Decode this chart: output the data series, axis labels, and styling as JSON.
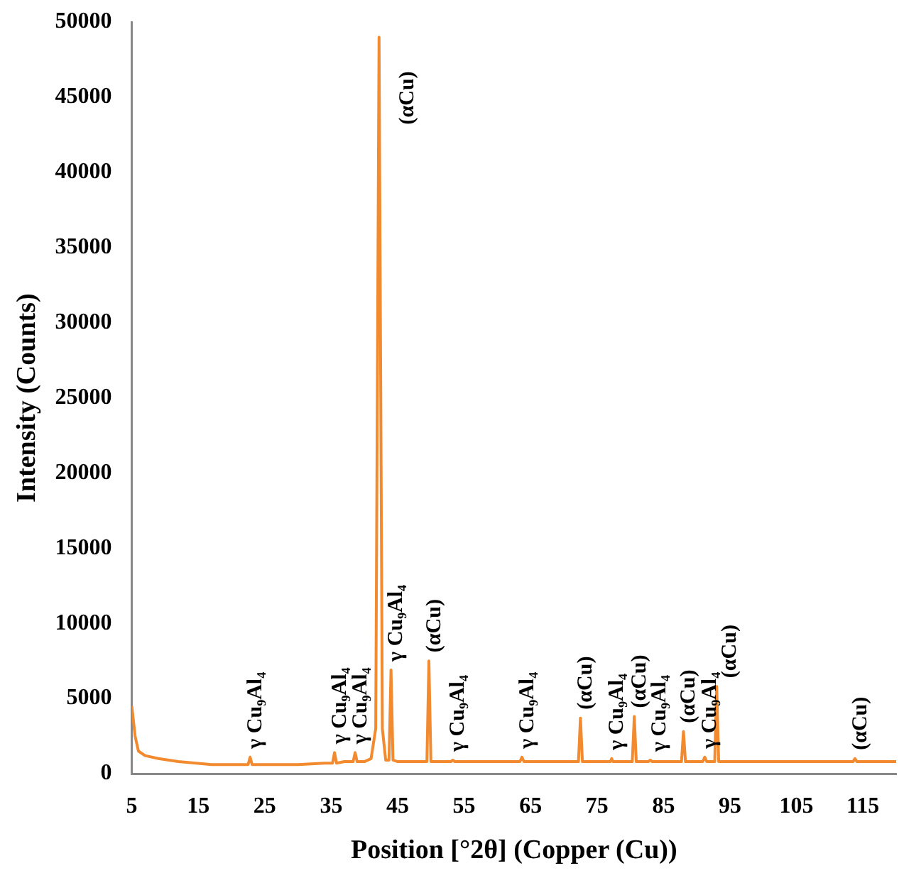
{
  "chart_data": {
    "type": "line",
    "xlabel": "Position [°2θ] (Copper (Cu))",
    "ylabel": "Intensity (Counts)",
    "xlim": [
      5,
      120
    ],
    "xticks": [
      5,
      15,
      25,
      35,
      45,
      55,
      65,
      75,
      85,
      95,
      105,
      115
    ],
    "ylim": [
      0,
      50000
    ],
    "yticks": [
      0,
      5000,
      10000,
      15000,
      20000,
      25000,
      30000,
      35000,
      40000,
      45000,
      50000
    ],
    "grid": false,
    "legend": false,
    "marker": "none",
    "line_style": "solid",
    "series": [
      {
        "color": "#f28a30",
        "x": [
          5,
          5.5,
          6,
          7,
          9,
          12,
          17,
          22,
          22.5,
          22.8,
          23.1,
          26,
          30,
          34,
          35.2,
          35.5,
          35.8,
          37,
          38.3,
          38.6,
          38.9,
          40,
          41,
          41.7,
          42.2,
          42.7,
          43.2,
          43.7,
          44.0,
          44.3,
          45,
          47,
          49.4,
          49.7,
          50,
          51,
          53,
          53.3,
          53.6,
          58,
          63.4,
          63.7,
          64,
          68,
          72.2,
          72.5,
          72.8,
          75,
          77,
          77.2,
          77.4,
          80.3,
          80.6,
          80.9,
          82.7,
          83.0,
          83.3,
          87.7,
          88.0,
          88.3,
          90.9,
          91.2,
          91.5,
          92.7,
          93.0,
          93.3,
          100,
          110,
          113.5,
          113.8,
          114.1,
          120
        ],
        "values": [
          4500,
          2500,
          1500,
          1200,
          1000,
          800,
          600,
          600,
          600,
          1100,
          600,
          600,
          600,
          700,
          700,
          1400,
          700,
          800,
          800,
          1400,
          800,
          800,
          1000,
          3000,
          49000,
          3000,
          900,
          900,
          6900,
          900,
          800,
          800,
          800,
          7500,
          800,
          800,
          800,
          900,
          800,
          800,
          800,
          1100,
          800,
          800,
          800,
          3700,
          800,
          800,
          800,
          1000,
          800,
          800,
          3800,
          800,
          800,
          900,
          800,
          800,
          2800,
          800,
          800,
          1100,
          800,
          800,
          5800,
          800,
          800,
          800,
          800,
          1000,
          800,
          800
        ]
      }
    ],
    "annotations": [
      {
        "text": "γ Cu₉Al₄",
        "x": 22.8,
        "y": 1100
      },
      {
        "text": "γ Cu₉Al₄",
        "x": 35.5,
        "y": 1400
      },
      {
        "text": "γ Cu₉Al₄",
        "x": 38.6,
        "y": 1400
      },
      {
        "text": "(αCu)",
        "x": 42.2,
        "y": 49000
      },
      {
        "text": "γ Cu₉Al₄",
        "x": 44.0,
        "y": 6900
      },
      {
        "text": "(αCu)",
        "x": 49.7,
        "y": 7500
      },
      {
        "text": "γ Cu₉Al₄",
        "x": 53.3,
        "y": 900
      },
      {
        "text": "γ Cu₉Al₄",
        "x": 63.7,
        "y": 1100
      },
      {
        "text": "(αCu)",
        "x": 72.5,
        "y": 3700
      },
      {
        "text": "γ Cu₉Al₄",
        "x": 77.2,
        "y": 1000
      },
      {
        "text": "(αCu)",
        "x": 80.6,
        "y": 3800
      },
      {
        "text": "γ Cu₉Al₄",
        "x": 83.0,
        "y": 900
      },
      {
        "text": "(αCu)",
        "x": 88.0,
        "y": 2800
      },
      {
        "text": "γ Cu₉Al₄",
        "x": 91.2,
        "y": 1100
      },
      {
        "text": "(αCu)",
        "x": 93.0,
        "y": 5800
      },
      {
        "text": "(αCu)",
        "x": 113.8,
        "y": 1000
      }
    ]
  }
}
